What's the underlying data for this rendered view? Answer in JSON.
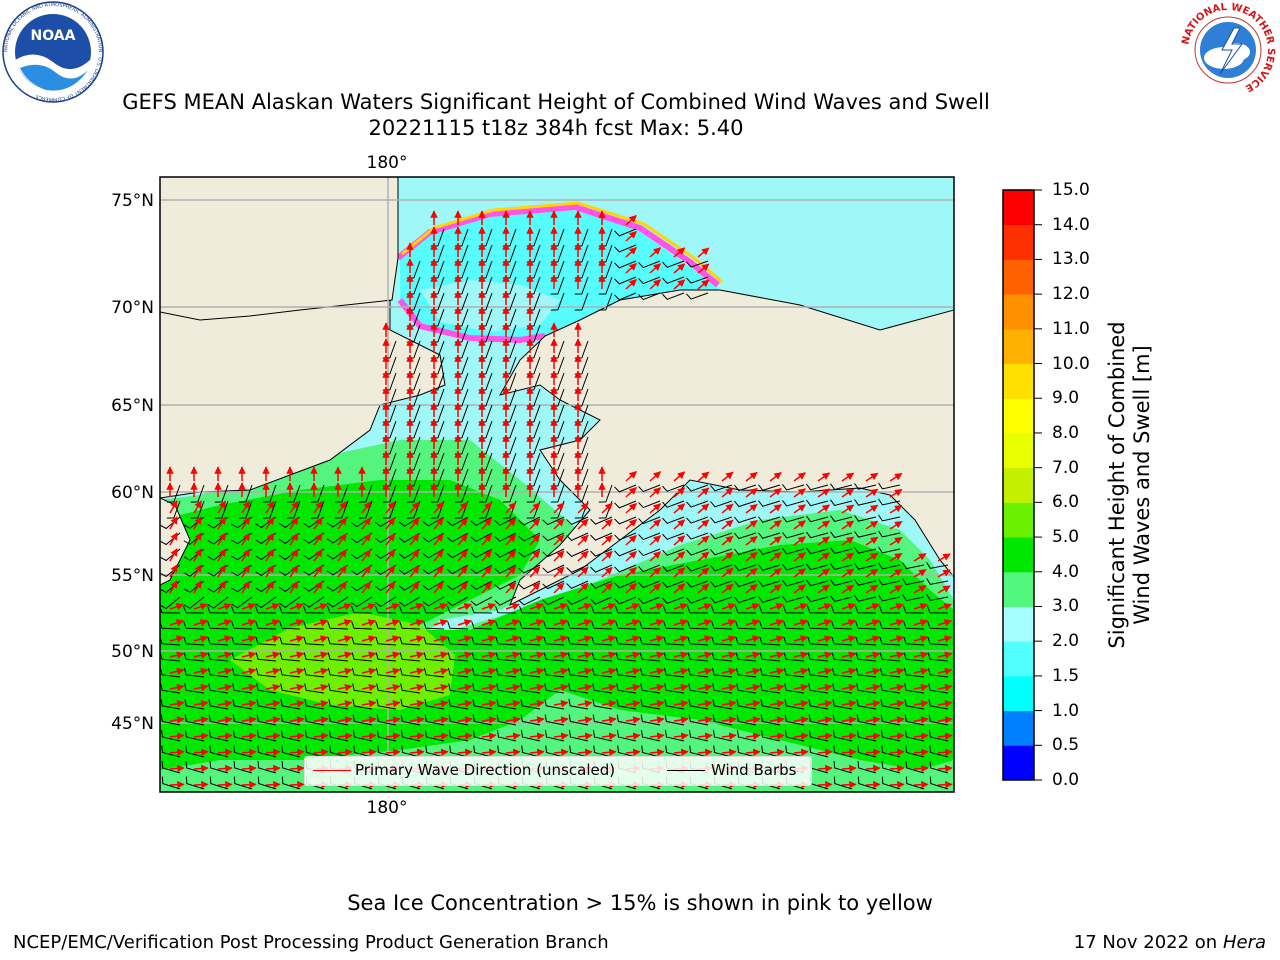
{
  "header": {
    "title_line1": "GEFS MEAN Alaskan Waters Significant Height of Combined Wind Waves and Swell",
    "title_line2": "20221115 t18z 384h fcst   Max: 5.40",
    "left_logo_text": "NOAA",
    "left_logo_ring_text": "NATIONAL OCEANIC AND ATMOSPHERIC ADMINISTRATION · U.S. DEPARTMENT OF COMMERCE",
    "right_logo_ring_text": "NATIONAL WEATHER SERVICE"
  },
  "map": {
    "lon_label_top": "180°",
    "lon_label_bottom": "180°",
    "lat_labels": [
      "75°N",
      "70°N",
      "65°N",
      "60°N",
      "55°N",
      "50°N",
      "45°N"
    ],
    "colors": {
      "land": "#efecdc",
      "ocean_0_5": "#9ff7f7",
      "ocean_1_5": "#57fcfc",
      "ocean_3_4": "#54f57f",
      "ocean_4_5": "#00e800",
      "ocean_5_6": "#6df000",
      "wave_arrow": "#ff0000",
      "wind_barb": "#000000",
      "sea_ice_pink": "#ff55e6",
      "sea_ice_yellow": "#ffd400"
    }
  },
  "legend": {
    "primary_wave": "Primary Wave Direction (unscaled)",
    "wind_barbs": "Wind Barbs"
  },
  "colorbar": {
    "title_line1": "Significant Height of Combined",
    "title_line2": "Wind Waves and Swell [m]",
    "ticks": [
      "15.0",
      "14.0",
      "13.0",
      "12.0",
      "11.0",
      "10.0",
      "9.0",
      "8.0",
      "7.0",
      "6.0",
      "5.0",
      "4.0",
      "3.0",
      "2.0",
      "1.5",
      "1.0",
      "0.5",
      "0.0"
    ],
    "colors_bottom_to_top": [
      "#0000ff",
      "#0080ff",
      "#00ffff",
      "#52ffff",
      "#a8ffff",
      "#52f77e",
      "#00e800",
      "#6bf000",
      "#c4f000",
      "#e8ff00",
      "#ffff00",
      "#ffe000",
      "#ffb000",
      "#ff9000",
      "#ff6000",
      "#ff3000",
      "#ff0000"
    ]
  },
  "notes": {
    "sea_ice": "Sea Ice Concentration > 15% is shown in pink to yellow",
    "footer_left": "NCEP/EMC/Verification Post Processing Product Generation Branch",
    "footer_date": "17 Nov 2022 on",
    "footer_host": "Hera"
  }
}
